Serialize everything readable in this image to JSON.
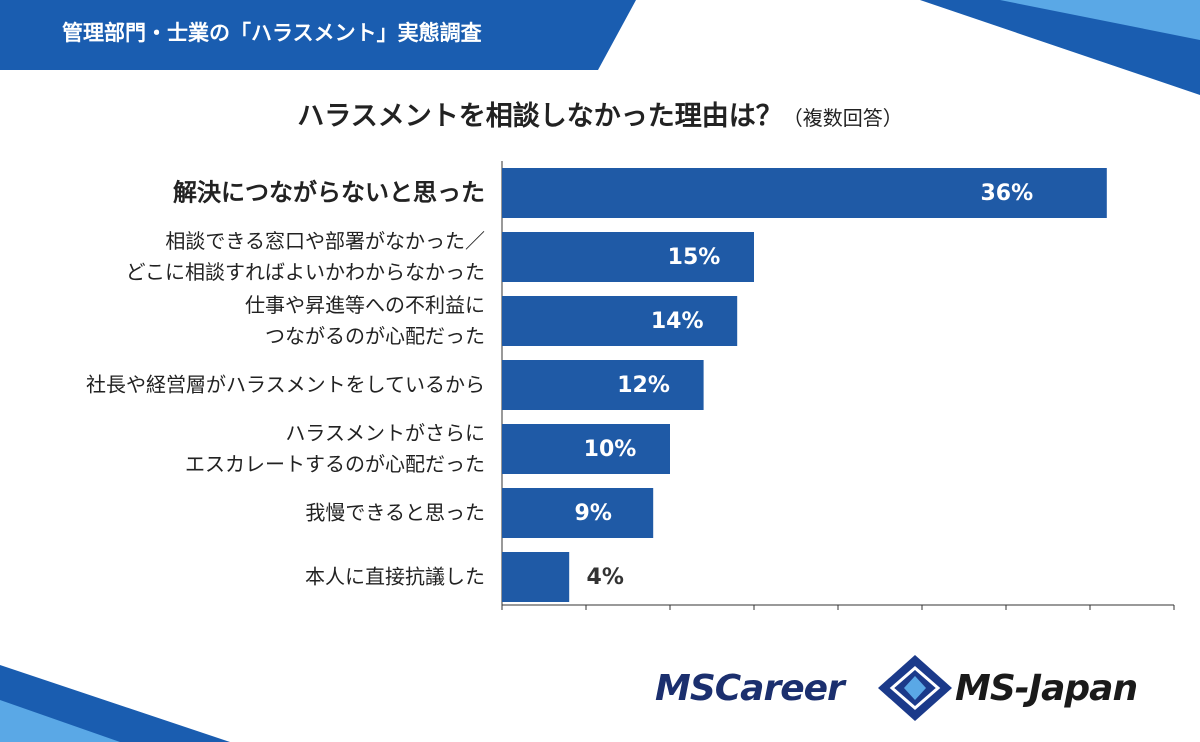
{
  "header": {
    "banner": "管理部門・士業の「ハラスメント」実態調査"
  },
  "chart_data": {
    "type": "barh",
    "title": "ハラスメントを相談しなかった理由は？",
    "subtitle": "（複数回答）",
    "categories": [
      "解決につながらないと思った",
      "相談できる窓口や部署がなかった／\nどこに相談すればよいかわからなかった",
      "仕事や昇進等への不利益に\nつながるのが心配だった",
      "社長や経営層がハラスメントをしているから",
      "ハラスメントがさらに\nエスカレートするのが心配だった",
      "我慢できると思った",
      "本人に直接抗議した"
    ],
    "values": [
      36,
      15,
      14,
      12,
      10,
      9,
      4
    ],
    "value_labels": [
      "36%",
      "15%",
      "14%",
      "12%",
      "10%",
      "9%",
      "4%"
    ],
    "color": "#1f5aa6",
    "xlim": [
      0,
      40
    ],
    "xticks": [
      0,
      5,
      10,
      15,
      20,
      25,
      30,
      35,
      40
    ]
  },
  "footer": {
    "logos": [
      "MSCareer",
      "MS-Japan"
    ]
  }
}
